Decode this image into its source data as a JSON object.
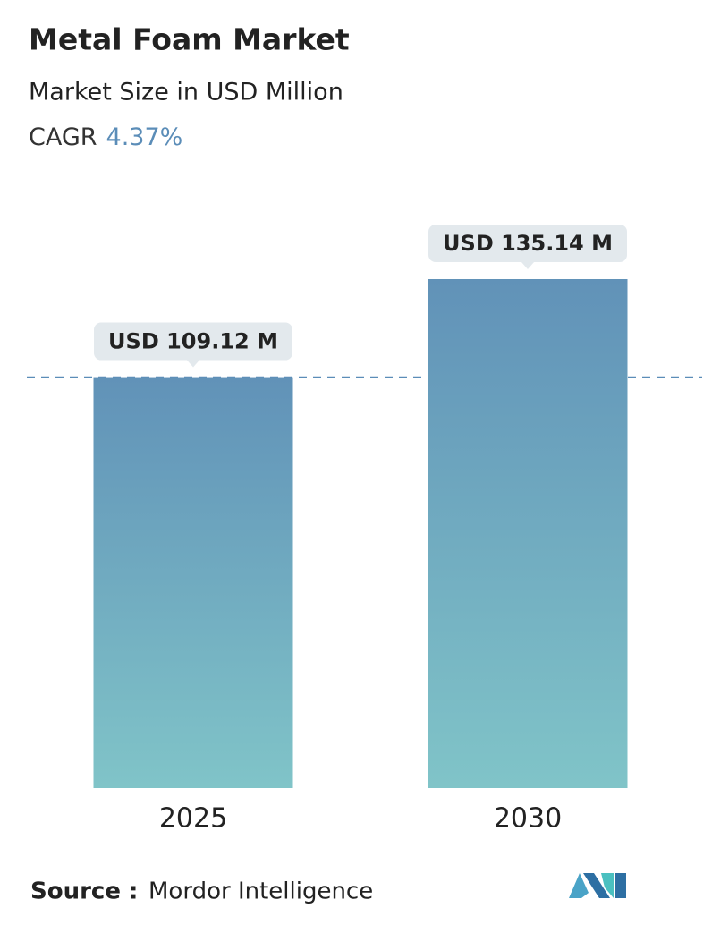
{
  "chart_data": {
    "type": "bar",
    "title": "Metal Foam Market",
    "subtitle": "Market Size in USD Million",
    "cagr_label": "CAGR",
    "cagr": "4.37%",
    "categories": [
      "2025",
      "2030"
    ],
    "values": [
      109.12,
      135.14
    ],
    "value_labels": [
      "USD 109.12 M",
      "USD 135.14 M"
    ],
    "color": [
      "#6192b8",
      "#80c4c8"
    ],
    "source_label": "Source :",
    "source": "Mordor Intelligence"
  }
}
